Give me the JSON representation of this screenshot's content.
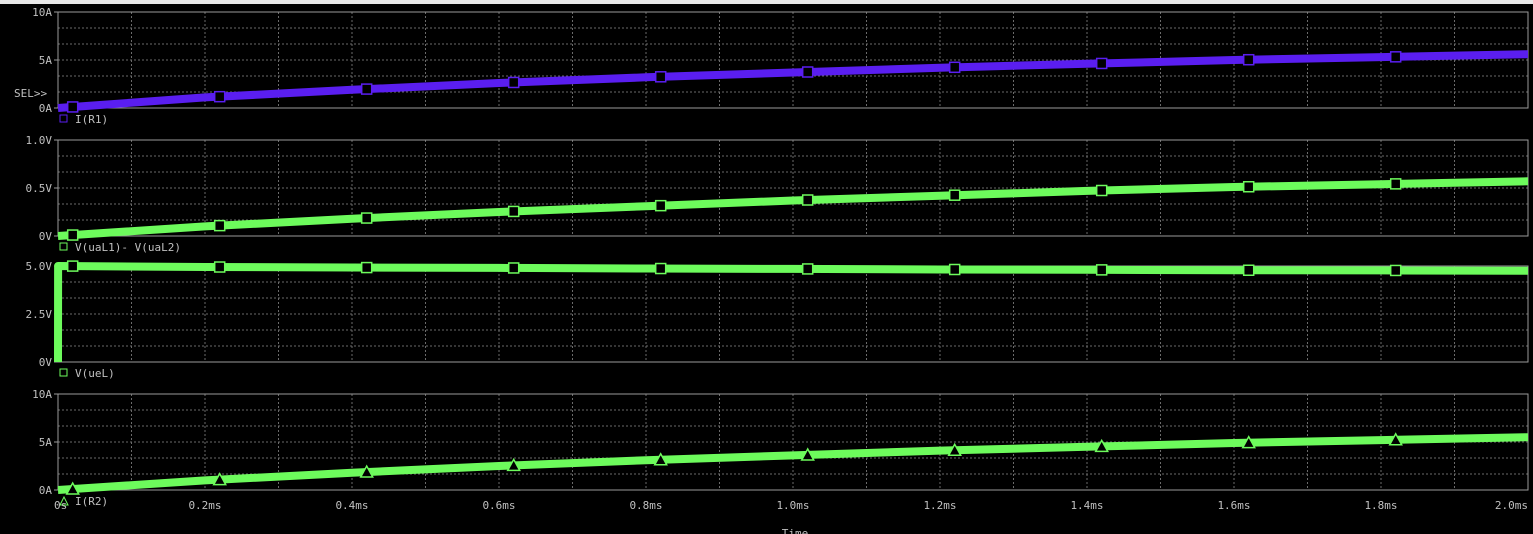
{
  "x_axis": {
    "label": "Time",
    "ticks": [
      "0s",
      "0.2ms",
      "0.4ms",
      "0.6ms",
      "0.8ms",
      "1.0ms",
      "1.2ms",
      "1.4ms",
      "1.6ms",
      "1.8ms",
      "2.0ms"
    ]
  },
  "selector_label": "SEL>>",
  "colors": {
    "background": "#000000",
    "grid": "#6a6a6a",
    "frame": "#9a9a9a",
    "trace_purple": "#5a1ef0",
    "trace_green": "#6dfb5c",
    "text": "#c0c0c0"
  },
  "chart_data": [
    {
      "type": "line",
      "title": "",
      "ylabel": "",
      "xlabel": "Time",
      "x_unit": "ms",
      "xlim": [
        0,
        2.0
      ],
      "ylim": [
        0,
        10
      ],
      "y_ticks": [
        "10A",
        "5A",
        "0A"
      ],
      "grid": true,
      "selected": true,
      "legend_position": "bottom-left",
      "series": [
        {
          "name": "I(R1)",
          "color": "#5a1ef0",
          "marker": "square",
          "x": [
            0,
            0.2,
            0.4,
            0.6,
            0.8,
            1.0,
            1.2,
            1.4,
            1.6,
            1.8,
            2.0
          ],
          "values": [
            0,
            1.1,
            1.9,
            2.6,
            3.2,
            3.7,
            4.2,
            4.6,
            5.0,
            5.3,
            5.6
          ]
        }
      ]
    },
    {
      "type": "line",
      "title": "",
      "ylabel": "",
      "xlabel": "Time",
      "x_unit": "ms",
      "xlim": [
        0,
        2.0
      ],
      "ylim": [
        0,
        1.0
      ],
      "y_ticks": [
        "1.0V",
        "0.5V",
        "0V"
      ],
      "grid": true,
      "legend_position": "bottom-left",
      "series": [
        {
          "name": "V(uaL1)- V(uaL2)",
          "color": "#6dfb5c",
          "marker": "square",
          "x": [
            0,
            0.2,
            0.4,
            0.6,
            0.8,
            1.0,
            1.2,
            1.4,
            1.6,
            1.8,
            2.0
          ],
          "values": [
            0,
            0.1,
            0.18,
            0.25,
            0.31,
            0.37,
            0.42,
            0.47,
            0.51,
            0.54,
            0.57
          ]
        }
      ]
    },
    {
      "type": "line",
      "title": "",
      "ylabel": "",
      "xlabel": "Time",
      "x_unit": "ms",
      "xlim": [
        0,
        2.0
      ],
      "ylim": [
        0,
        5.0
      ],
      "y_ticks": [
        "5.0V",
        "2.5V",
        "0V"
      ],
      "grid": true,
      "legend_position": "bottom-left",
      "series": [
        {
          "name": "V(ueL)",
          "color": "#6dfb5c",
          "marker": "square",
          "x": [
            0,
            0.0001,
            0.2,
            0.4,
            0.6,
            0.8,
            1.0,
            1.2,
            1.4,
            1.6,
            1.8,
            2.0
          ],
          "values": [
            0,
            5.0,
            4.95,
            4.92,
            4.9,
            4.87,
            4.85,
            4.82,
            4.8,
            4.78,
            4.77,
            4.75
          ]
        }
      ]
    },
    {
      "type": "line",
      "title": "",
      "ylabel": "",
      "xlabel": "Time",
      "x_unit": "ms",
      "xlim": [
        0,
        2.0
      ],
      "ylim": [
        0,
        10
      ],
      "y_ticks": [
        "10A",
        "5A",
        "0A"
      ],
      "grid": true,
      "legend_position": "bottom-left",
      "series": [
        {
          "name": "I(R2)",
          "color": "#6dfb5c",
          "marker": "triangle",
          "x": [
            0,
            0.2,
            0.4,
            0.6,
            0.8,
            1.0,
            1.2,
            1.4,
            1.6,
            1.8,
            2.0
          ],
          "values": [
            0,
            1.0,
            1.8,
            2.5,
            3.1,
            3.6,
            4.1,
            4.5,
            4.9,
            5.2,
            5.5
          ]
        }
      ]
    }
  ]
}
